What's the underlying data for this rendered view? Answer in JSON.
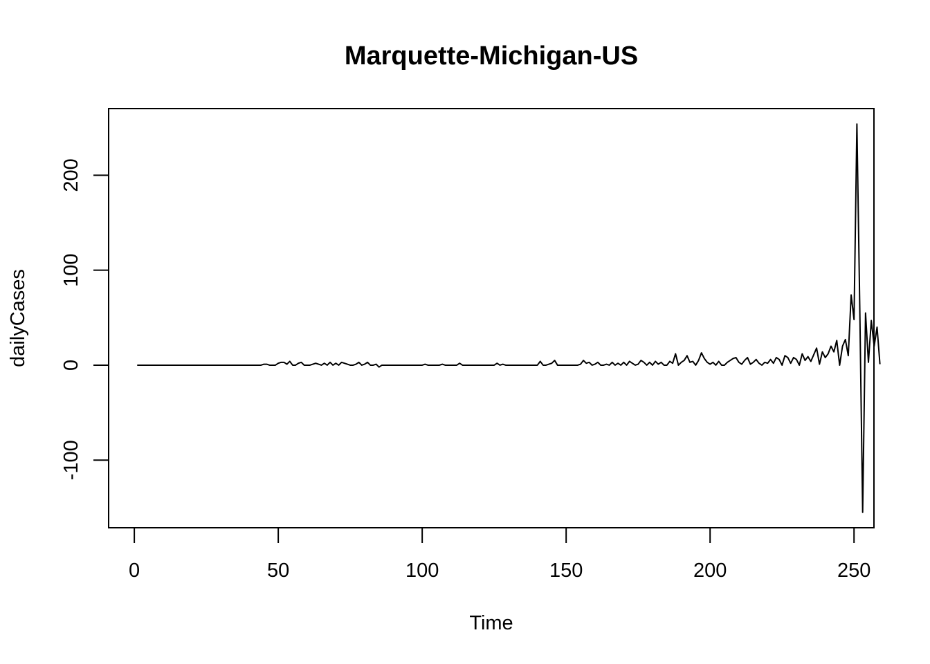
{
  "chart_data": {
    "type": "line",
    "title": "Marquette-Michigan-US",
    "xlabel": "Time",
    "ylabel": "dailyCases",
    "xlim": [
      -8.92,
      256.92
    ],
    "ylim": [
      -171.24,
      270.24
    ],
    "xticks": [
      0,
      50,
      100,
      150,
      200,
      250
    ],
    "yticks": [
      -100,
      0,
      100,
      200
    ],
    "grid": false,
    "series": [
      {
        "x_start": 1,
        "values": [
          0,
          0,
          0,
          0,
          0,
          0,
          0,
          0,
          0,
          0,
          0,
          0,
          0,
          0,
          0,
          0,
          0,
          0,
          0,
          0,
          0,
          0,
          0,
          0,
          0,
          0,
          0,
          0,
          0,
          0,
          0,
          0,
          0,
          0,
          0,
          0,
          0,
          0,
          0,
          0,
          0,
          0,
          0,
          0,
          1,
          1,
          0,
          0,
          0,
          2,
          3,
          3,
          1,
          4,
          0,
          0,
          2,
          3,
          0,
          0,
          0,
          1,
          2,
          1,
          0,
          2,
          0,
          3,
          0,
          2,
          0,
          3,
          2,
          1,
          0,
          0,
          1,
          3,
          0,
          1,
          3,
          0,
          0,
          1,
          -2,
          0,
          0,
          0,
          0,
          0,
          0,
          0,
          0,
          0,
          0,
          0,
          0,
          0,
          0,
          0,
          1,
          0,
          0,
          0,
          0,
          0,
          1,
          0,
          0,
          0,
          0,
          0,
          2,
          0,
          0,
          0,
          0,
          0,
          0,
          0,
          0,
          0,
          0,
          0,
          0,
          2,
          0,
          1,
          0,
          0,
          0,
          0,
          0,
          0,
          0,
          0,
          0,
          0,
          0,
          0,
          4,
          0,
          0,
          1,
          2,
          5,
          0,
          0,
          0,
          0,
          0,
          0,
          0,
          0,
          1,
          5,
          2,
          3,
          0,
          1,
          3,
          0,
          0,
          1,
          0,
          3,
          0,
          2,
          0,
          3,
          0,
          4,
          2,
          0,
          1,
          5,
          3,
          0,
          3,
          0,
          4,
          1,
          3,
          0,
          0,
          4,
          2,
          12,
          0,
          3,
          5,
          10,
          3,
          4,
          0,
          5,
          13,
          7,
          3,
          1,
          3,
          0,
          4,
          0,
          0,
          3,
          5,
          7,
          8,
          3,
          1,
          5,
          8,
          1,
          3,
          6,
          2,
          0,
          3,
          2,
          6,
          2,
          8,
          6,
          0,
          10,
          8,
          2,
          8,
          6,
          0,
          12,
          5,
          9,
          4,
          11,
          18,
          1,
          14,
          8,
          12,
          20,
          14,
          26,
          0,
          20,
          27,
          10,
          74,
          48,
          254,
          60,
          -155,
          55,
          3,
          47,
          20,
          40,
          1
        ]
      }
    ]
  }
}
